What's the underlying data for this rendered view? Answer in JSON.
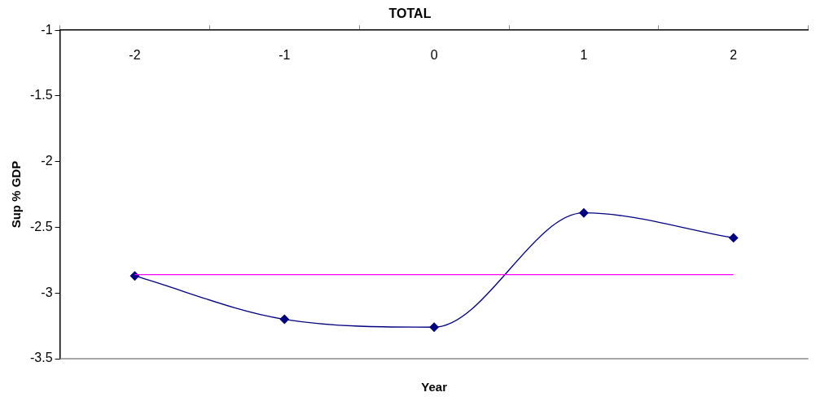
{
  "chart_data": {
    "type": "line",
    "title": "TOTAL",
    "xlabel": "Year",
    "ylabel": "Sup % GDP",
    "categories": [
      "-2",
      "-1",
      "0",
      "1",
      "2"
    ],
    "series": [
      {
        "color": "#000080",
        "marker": "diamond",
        "values": [
          -2.87,
          -3.2,
          -3.26,
          -2.39,
          -2.58
        ]
      },
      {
        "color": "#ff00ff",
        "marker": "none",
        "values": [
          -2.86,
          -2.86,
          -2.86,
          -2.86,
          -2.86
        ]
      }
    ],
    "ylim": [
      -3.5,
      -1
    ],
    "yticks": [
      -1,
      -1.5,
      -2,
      -2.5,
      -3,
      -3.5
    ],
    "grid": false,
    "legend": false
  }
}
